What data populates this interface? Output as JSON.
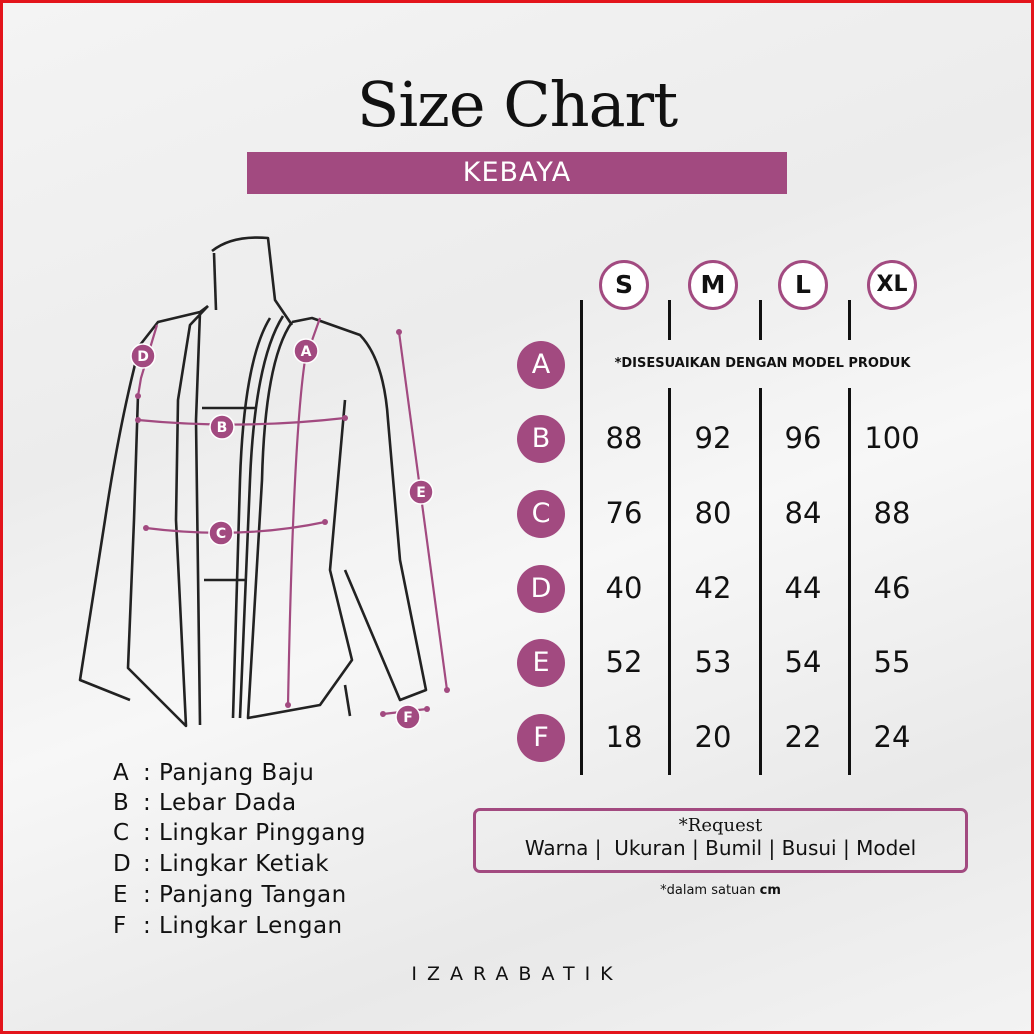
{
  "title": "Size Chart",
  "subtitle": "KEBAYA",
  "accent_color": "#a24a80",
  "sizes": [
    "S",
    "M",
    "L",
    "XL"
  ],
  "rows": [
    {
      "code": "A",
      "note": "*DISESUAIKAN DENGAN MODEL PRODUK",
      "values": []
    },
    {
      "code": "B",
      "values": [
        "88",
        "92",
        "96",
        "100"
      ]
    },
    {
      "code": "C",
      "values": [
        "76",
        "80",
        "84",
        "88"
      ]
    },
    {
      "code": "D",
      "values": [
        "40",
        "42",
        "44",
        "46"
      ]
    },
    {
      "code": "E",
      "values": [
        "52",
        "53",
        "54",
        "55"
      ]
    },
    {
      "code": "F",
      "values": [
        "18",
        "20",
        "22",
        "24"
      ]
    }
  ],
  "diagram_labels": [
    "A",
    "B",
    "C",
    "D",
    "E",
    "F"
  ],
  "legend": [
    {
      "code": "A",
      "label": ": Panjang Baju"
    },
    {
      "code": "B",
      "label": ": Lebar Dada"
    },
    {
      "code": "C",
      "label": ": Lingkar Pinggang"
    },
    {
      "code": "D",
      "label": ": Lingkar Ketiak"
    },
    {
      "code": "E",
      "label": ": Panjang Tangan"
    },
    {
      "code": "F",
      "label": ": Lingkar Lengan"
    }
  ],
  "request": {
    "title": "*Request",
    "options": [
      "Warna",
      "Ukuran",
      "Bumil",
      "Busui",
      "Model"
    ]
  },
  "unit_note": {
    "prefix": "*dalam satuan ",
    "unit": "cm"
  },
  "brand": "IZARABATIK"
}
